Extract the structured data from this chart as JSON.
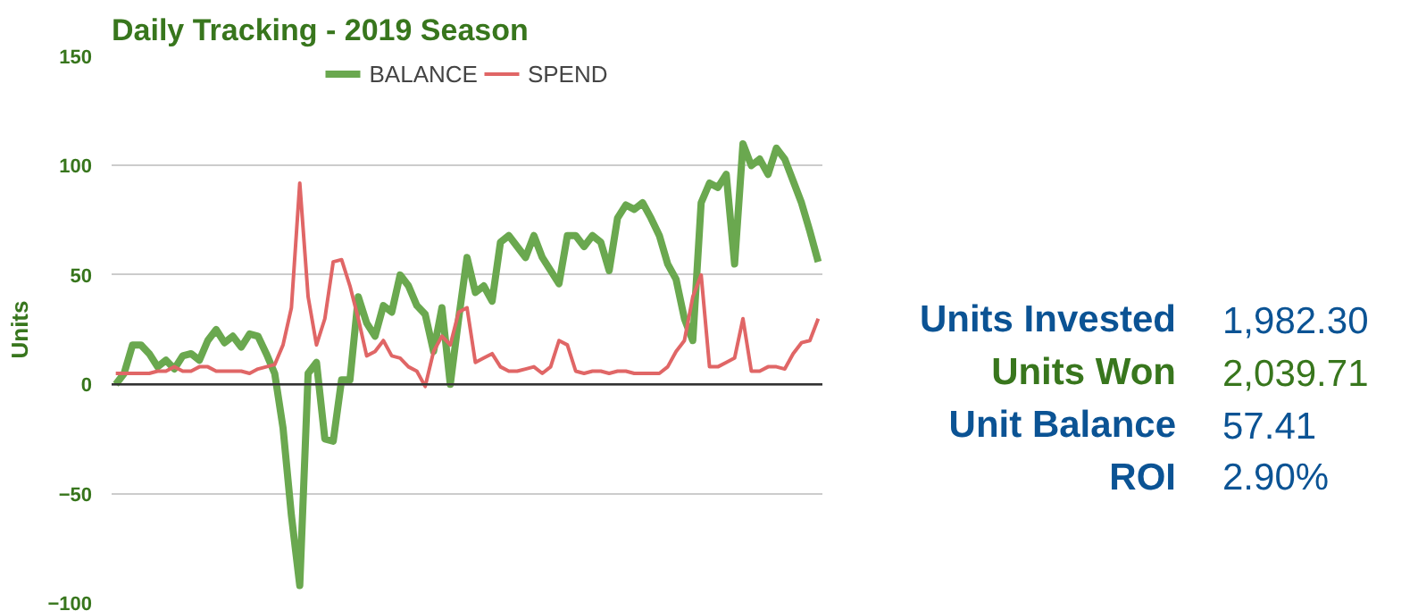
{
  "chart_data": [
    {
      "type": "line",
      "title": "Daily Tracking - 2019 Season",
      "ylabel": "Units",
      "categories": [
        null,
        null,
        null,
        null,
        null,
        null,
        null,
        null,
        null,
        null,
        null,
        null,
        null,
        null,
        null,
        null,
        null,
        null,
        null,
        null,
        null,
        null,
        null,
        null,
        null,
        null,
        null,
        null,
        null,
        null,
        null,
        null,
        null,
        null,
        null,
        null,
        null,
        null,
        null,
        null,
        null,
        null,
        null,
        null,
        null,
        null,
        null,
        null,
        null,
        null,
        null,
        null,
        null,
        null,
        null,
        null,
        null,
        null,
        null,
        null,
        null,
        null,
        null,
        null,
        null,
        null,
        null,
        null,
        null,
        null,
        null,
        null,
        null,
        null,
        null,
        null,
        null,
        null,
        null,
        null,
        null,
        null,
        null,
        null,
        null
      ],
      "series": [
        {
          "name": "BALANCE",
          "color": "#6aa84f",
          "values": [
            0,
            5,
            18,
            18,
            14,
            8,
            11,
            7,
            13,
            14,
            11,
            20,
            25,
            19,
            22,
            17,
            23,
            22,
            14,
            5,
            -20,
            -60,
            -92,
            5,
            10,
            -25,
            -26,
            2,
            2,
            40,
            28,
            22,
            36,
            33,
            50,
            45,
            36,
            32,
            15,
            35,
            0,
            30,
            58,
            42,
            45,
            38,
            65,
            68,
            63,
            58,
            68,
            58,
            52,
            46,
            68,
            68,
            63,
            68,
            65,
            52,
            76,
            82,
            80,
            83,
            76,
            68,
            55,
            48,
            30,
            20,
            83,
            92,
            90,
            96,
            55,
            110,
            100,
            103,
            96,
            108,
            103,
            93,
            83,
            70,
            56
          ]
        },
        {
          "name": "SPEND",
          "color": "#e06666",
          "values": [
            5,
            5,
            5,
            5,
            5,
            6,
            6,
            8,
            6,
            6,
            8,
            8,
            6,
            6,
            6,
            6,
            5,
            7,
            8,
            9,
            18,
            35,
            92,
            40,
            18,
            30,
            56,
            57,
            45,
            30,
            13,
            15,
            20,
            13,
            12,
            8,
            6,
            -1,
            15,
            22,
            18,
            33,
            35,
            10,
            12,
            14,
            8,
            6,
            6,
            7,
            8,
            5,
            8,
            20,
            18,
            6,
            5,
            6,
            6,
            5,
            6,
            6,
            5,
            5,
            5,
            5,
            8,
            15,
            20,
            40,
            50,
            8,
            8,
            10,
            12,
            30,
            6,
            6,
            8,
            8,
            7,
            14,
            19,
            20,
            30
          ]
        }
      ],
      "ylim": [
        -100,
        150
      ],
      "yticks": [
        -100,
        -50,
        0,
        50,
        100,
        150
      ],
      "grid": "y",
      "legend": "top",
      "tick_labels": "y",
      "ref_lines": [
        {
          "axis": "y",
          "value": 0,
          "color": "#333333"
        }
      ]
    },
    {
      "type": "other",
      "annotations": [
        "Units Invested",
        "1,982.30",
        "Units Won",
        "2,039.71",
        "Unit Balance",
        "57.41",
        "ROI",
        "2.90%"
      ],
      "colors": [
        "#0b5394",
        "#0b5394",
        "#38761d",
        "#38761d",
        "#0b5394",
        "#0b5394",
        "#0b5394",
        "#0b5394"
      ]
    }
  ]
}
